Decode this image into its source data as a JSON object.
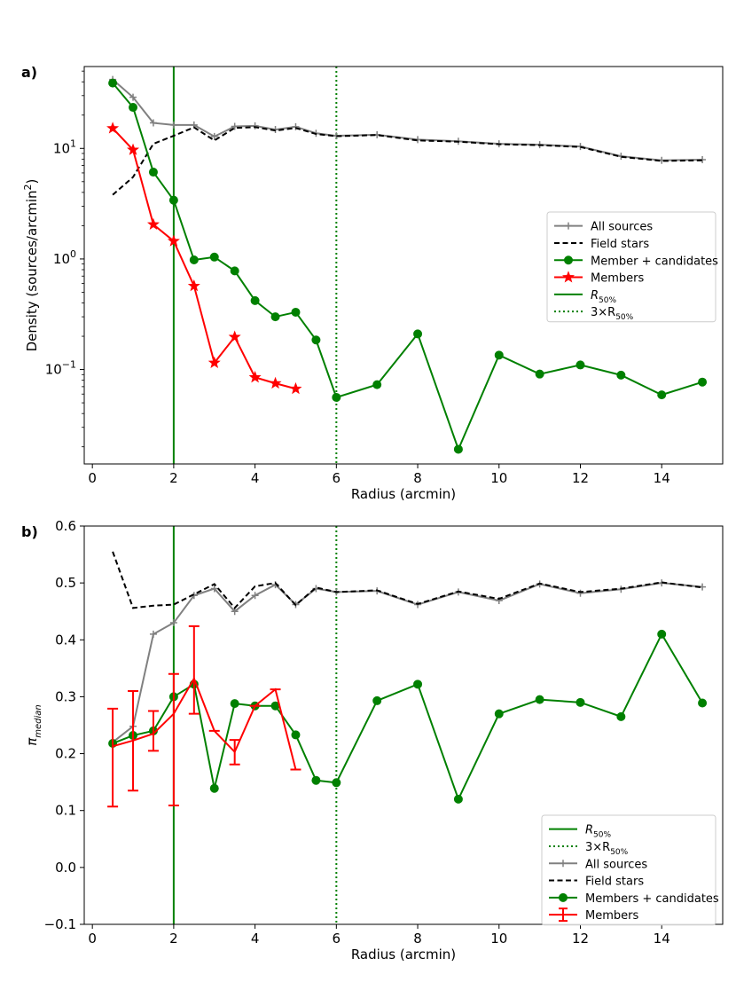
{
  "chart_data": [
    {
      "type": "line",
      "panel_label": "a)",
      "xlabel": "Radius (arcmin)",
      "ylabel": "Density (sources/arcmin²)",
      "ylabel_base": "Density (sources/arcmin",
      "ylabel_sup": "2",
      "ylabel_end": ")",
      "yscale": "log",
      "xlim": [
        -0.2,
        15.5
      ],
      "ylim": [
        0.014,
        55
      ],
      "xticks": [
        0,
        2,
        4,
        6,
        8,
        10,
        12,
        14
      ],
      "yticks": [
        {
          "value": 0.1,
          "base": "10",
          "exp": "−1"
        },
        {
          "value": 1,
          "base": "10",
          "exp": "0"
        },
        {
          "value": 10,
          "base": "10",
          "exp": "1"
        }
      ],
      "vlines": [
        {
          "name": "R50%",
          "x": 2,
          "style": "solid",
          "color": "#008000"
        },
        {
          "name": "3×R50%",
          "x": 6,
          "style": "dotted",
          "color": "#008000"
        }
      ],
      "series": [
        {
          "name": "All sources",
          "color": "#808080",
          "marker": "plus",
          "linestyle": "solid",
          "x": [
            0.5,
            1,
            1.5,
            2,
            2.5,
            3,
            3.5,
            4,
            4.5,
            5,
            5.5,
            6,
            7,
            8,
            9,
            10,
            11,
            12,
            13,
            14,
            15
          ],
          "values": [
            42,
            29,
            17,
            16.3,
            16.3,
            12.8,
            15.8,
            16,
            14.8,
            15.7,
            13.7,
            13,
            13.3,
            12,
            11.6,
            11,
            10.8,
            10.4,
            8.5,
            7.8,
            7.9
          ]
        },
        {
          "name": "Field stars",
          "color": "#000000",
          "marker": "none",
          "linestyle": "dashed",
          "x": [
            0.5,
            1,
            1.5,
            2,
            2.5,
            3,
            3.5,
            4,
            4.5,
            5,
            5.5,
            6,
            7,
            8,
            9,
            10,
            11,
            12,
            13,
            14,
            15
          ],
          "values": [
            3.8,
            5.5,
            11,
            13,
            15.5,
            11.8,
            15.3,
            15.6,
            14.5,
            15.3,
            13.5,
            12.9,
            13.2,
            11.8,
            11.5,
            10.9,
            10.7,
            10.3,
            8.4,
            7.7,
            7.8
          ]
        },
        {
          "name": "Member + candidates",
          "color": "#008000",
          "marker": "circle",
          "linestyle": "solid",
          "x": [
            0.5,
            1,
            1.5,
            2,
            2.5,
            3,
            3.5,
            4,
            4.5,
            5,
            5.5,
            6,
            7,
            8,
            9,
            10,
            11,
            12,
            13,
            14,
            15
          ],
          "values": [
            39,
            23.5,
            6.1,
            3.4,
            0.98,
            1.04,
            0.78,
            0.42,
            0.3,
            0.33,
            0.185,
            0.056,
            0.073,
            0.21,
            0.019,
            0.135,
            0.091,
            0.11,
            0.089,
            0.059,
            0.077
          ]
        },
        {
          "name": "Members",
          "color": "#ff0000",
          "marker": "star",
          "linestyle": "solid",
          "x": [
            0.5,
            1,
            1.5,
            2,
            2.5,
            3,
            3.5,
            4,
            4.5,
            5
          ],
          "values": [
            15.2,
            9.7,
            2.05,
            1.45,
            0.57,
            0.115,
            0.197,
            0.085,
            0.075,
            0.067
          ]
        }
      ],
      "legend": {
        "placement": "center-right",
        "entries": [
          "All sources",
          "Field stars",
          "Member + candidates",
          "Members",
          "R50%",
          "3×R50%"
        ],
        "r50_label": "R",
        "r50_sub": "50%",
        "r50x3_prefix": "3×R",
        "r50x3_sub": "50%"
      }
    },
    {
      "type": "line",
      "panel_label": "b)",
      "xlabel": "Radius (arcmin)",
      "ylabel": "π_median",
      "ylabel_base": "π",
      "ylabel_sub": "median",
      "yscale": "linear",
      "xlim": [
        -0.2,
        15.5
      ],
      "ylim": [
        -0.1,
        0.6
      ],
      "xticks": [
        0,
        2,
        4,
        6,
        8,
        10,
        12,
        14
      ],
      "yticks": [
        -0.1,
        0.0,
        0.1,
        0.2,
        0.3,
        0.4,
        0.5,
        0.6
      ],
      "ytick_labels": [
        "−0.1",
        "0.0",
        "0.1",
        "0.2",
        "0.3",
        "0.4",
        "0.5",
        "0.6"
      ],
      "vlines": [
        {
          "name": "R50%",
          "x": 2,
          "style": "solid",
          "color": "#008000"
        },
        {
          "name": "3×R50%",
          "x": 6,
          "style": "dotted",
          "color": "#008000"
        }
      ],
      "series": [
        {
          "name": "All sources",
          "color": "#808080",
          "marker": "plus",
          "linestyle": "solid",
          "x": [
            0.5,
            1,
            1.5,
            2,
            2.5,
            3,
            3.5,
            4,
            4.5,
            5,
            5.5,
            6,
            7,
            8,
            9,
            10,
            11,
            12,
            13,
            14,
            15
          ],
          "values": [
            0.22,
            0.248,
            0.41,
            0.43,
            0.478,
            0.49,
            0.45,
            0.478,
            0.497,
            0.462,
            0.49,
            0.484,
            0.486,
            0.462,
            0.484,
            0.469,
            0.498,
            0.482,
            0.489,
            0.5,
            0.493
          ]
        },
        {
          "name": "Field stars",
          "color": "#000000",
          "marker": "none",
          "linestyle": "dashed",
          "x": [
            0.5,
            1,
            1.5,
            2,
            2.5,
            3,
            3.5,
            4,
            4.5,
            5,
            5.5,
            6,
            7,
            8,
            9,
            10,
            11,
            12,
            13,
            14,
            15
          ],
          "values": [
            0.555,
            0.456,
            0.46,
            0.462,
            0.48,
            0.498,
            0.456,
            0.494,
            0.5,
            0.461,
            0.492,
            0.484,
            0.487,
            0.463,
            0.485,
            0.472,
            0.499,
            0.484,
            0.49,
            0.501,
            0.492
          ]
        },
        {
          "name": "Members + candidates",
          "color": "#008000",
          "marker": "circle",
          "linestyle": "solid",
          "x": [
            0.5,
            1,
            1.5,
            2,
            2.5,
            3,
            3.5,
            4,
            4.5,
            5,
            5.5,
            6,
            7,
            8,
            9,
            10,
            11,
            12,
            13,
            14,
            15
          ],
          "values": [
            0.218,
            0.232,
            0.24,
            0.3,
            0.322,
            0.139,
            0.288,
            0.284,
            0.284,
            0.233,
            0.153,
            0.149,
            0.293,
            0.322,
            0.12,
            0.27,
            0.295,
            0.29,
            0.265,
            0.41,
            0.289
          ]
        },
        {
          "name": "Members",
          "color": "#ff0000",
          "marker": "errorbar",
          "linestyle": "solid",
          "x": [
            0.5,
            1,
            1.5,
            2,
            2.5,
            3,
            3.5,
            4,
            4.5,
            5
          ],
          "values": [
            0.213,
            0.223,
            0.235,
            0.27,
            0.332,
            0.24,
            0.203,
            0.284,
            0.313,
            0.172
          ],
          "err_low": [
            0.107,
            0.135,
            0.205,
            0.109,
            0.27,
            0.24,
            0.181,
            0.284,
            0.313,
            0.172
          ],
          "err_high": [
            0.279,
            0.31,
            0.275,
            0.34,
            0.424,
            0.24,
            0.224,
            0.284,
            0.313,
            0.172
          ]
        }
      ],
      "legend": {
        "placement": "lower-right",
        "entries": [
          "R50%",
          "3×R50%",
          "All sources",
          "Field stars",
          "Members + candidates",
          "Members"
        ],
        "r50_label": "R",
        "r50_sub": "50%",
        "r50x3_prefix": "3×R",
        "r50x3_sub": "50%"
      }
    }
  ]
}
